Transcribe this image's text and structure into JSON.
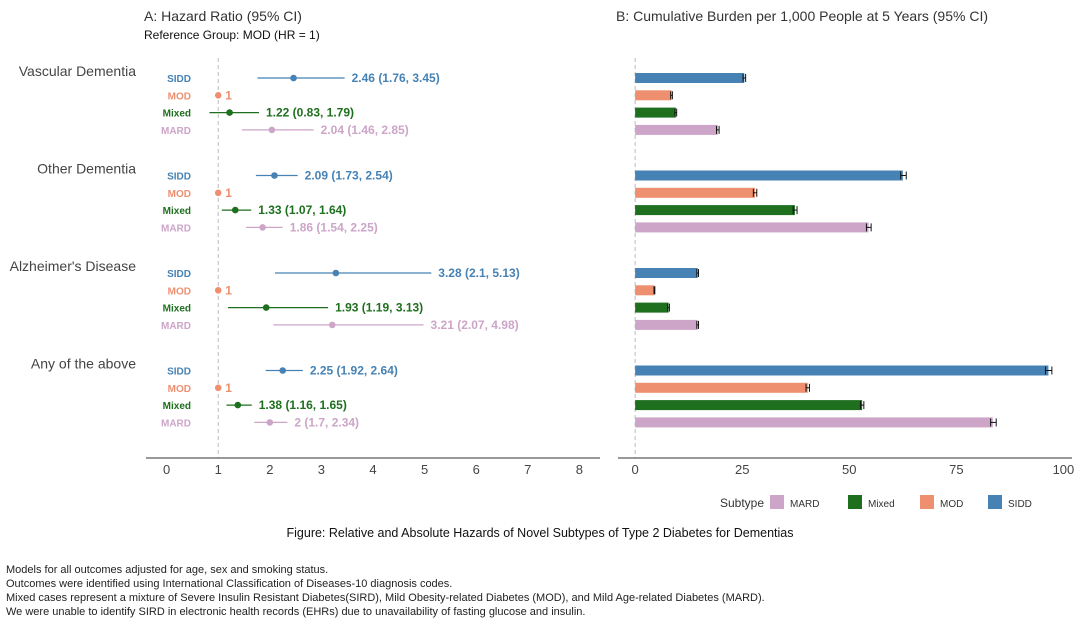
{
  "colors": {
    "SIDD": "#4682B4",
    "MOD": "#EE9070",
    "Mixed": "#1E6F1E",
    "MARD": "#CDA5C8"
  },
  "chart_data": [
    {
      "type": "forest",
      "title": "A: Hazard Ratio (95% CI)",
      "subtitle": "Reference Group: MOD (HR = 1)",
      "xlim": [
        -0.4,
        8.4
      ],
      "xticks": [
        0,
        1,
        2,
        3,
        4,
        5,
        6,
        7,
        8
      ],
      "reference_line": 1,
      "groups": [
        {
          "name": "Vascular Dementia",
          "rows": [
            {
              "subtype": "SIDD",
              "hr": 2.46,
              "lo": 1.76,
              "hi": 3.45,
              "label": "2.46 (1.76, 3.45)"
            },
            {
              "subtype": "MOD",
              "hr": 1,
              "lo": 1,
              "hi": 1,
              "label": "1"
            },
            {
              "subtype": "Mixed",
              "hr": 1.22,
              "lo": 0.83,
              "hi": 1.79,
              "label": "1.22 (0.83, 1.79)"
            },
            {
              "subtype": "MARD",
              "hr": 2.04,
              "lo": 1.46,
              "hi": 2.85,
              "label": "2.04 (1.46, 2.85)"
            }
          ]
        },
        {
          "name": "Other Dementia",
          "rows": [
            {
              "subtype": "SIDD",
              "hr": 2.09,
              "lo": 1.73,
              "hi": 2.54,
              "label": "2.09 (1.73, 2.54)"
            },
            {
              "subtype": "MOD",
              "hr": 1,
              "lo": 1,
              "hi": 1,
              "label": "1"
            },
            {
              "subtype": "Mixed",
              "hr": 1.33,
              "lo": 1.07,
              "hi": 1.64,
              "label": "1.33 (1.07, 1.64)"
            },
            {
              "subtype": "MARD",
              "hr": 1.86,
              "lo": 1.54,
              "hi": 2.25,
              "label": "1.86 (1.54, 2.25)"
            }
          ]
        },
        {
          "name": "Alzheimer's Disease",
          "rows": [
            {
              "subtype": "SIDD",
              "hr": 3.28,
              "lo": 2.1,
              "hi": 5.13,
              "label": "3.28 (2.1, 5.13)"
            },
            {
              "subtype": "MOD",
              "hr": 1,
              "lo": 1,
              "hi": 1,
              "label": "1"
            },
            {
              "subtype": "Mixed",
              "hr": 1.93,
              "lo": 1.19,
              "hi": 3.13,
              "label": "1.93 (1.19, 3.13)"
            },
            {
              "subtype": "MARD",
              "hr": 3.21,
              "lo": 2.07,
              "hi": 4.98,
              "label": "3.21 (2.07, 4.98)"
            }
          ]
        },
        {
          "name": "Any of the above",
          "rows": [
            {
              "subtype": "SIDD",
              "hr": 2.25,
              "lo": 1.92,
              "hi": 2.64,
              "label": "2.25 (1.92, 2.64)"
            },
            {
              "subtype": "MOD",
              "hr": 1,
              "lo": 1,
              "hi": 1,
              "label": "1"
            },
            {
              "subtype": "Mixed",
              "hr": 1.38,
              "lo": 1.16,
              "hi": 1.65,
              "label": "1.38 (1.16, 1.65)"
            },
            {
              "subtype": "MARD",
              "hr": 2,
              "lo": 1.7,
              "hi": 2.34,
              "label": "2 (1.7, 2.34)"
            }
          ]
        }
      ]
    },
    {
      "type": "bar",
      "orientation": "horizontal",
      "title": "B: Cumulative Burden per 1,000 People at 5 Years (95% CI)",
      "xlim": [
        -4,
        102
      ],
      "xticks": [
        0,
        25,
        50,
        75,
        100
      ],
      "groups": [
        {
          "name": "Vascular Dementia",
          "bars": [
            {
              "subtype": "SIDD",
              "value": 25.5,
              "lo": 25.2,
              "hi": 25.8
            },
            {
              "subtype": "MOD",
              "value": 8.5,
              "lo": 8.3,
              "hi": 8.7
            },
            {
              "subtype": "Mixed",
              "value": 9.5,
              "lo": 9.3,
              "hi": 9.7
            },
            {
              "subtype": "MARD",
              "value": 19.3,
              "lo": 19.0,
              "hi": 19.6
            }
          ]
        },
        {
          "name": "Other Dementia",
          "bars": [
            {
              "subtype": "SIDD",
              "value": 62.5,
              "lo": 62.0,
              "hi": 63.3
            },
            {
              "subtype": "MOD",
              "value": 28.0,
              "lo": 27.6,
              "hi": 28.4
            },
            {
              "subtype": "Mixed",
              "value": 37.3,
              "lo": 36.9,
              "hi": 37.8
            },
            {
              "subtype": "MARD",
              "value": 54.5,
              "lo": 54.0,
              "hi": 55.1
            }
          ]
        },
        {
          "name": "Alzheimer's Disease",
          "bars": [
            {
              "subtype": "SIDD",
              "value": 14.6,
              "lo": 14.4,
              "hi": 14.8
            },
            {
              "subtype": "MOD",
              "value": 4.5,
              "lo": 4.4,
              "hi": 4.6
            },
            {
              "subtype": "Mixed",
              "value": 7.8,
              "lo": 7.6,
              "hi": 8.0
            },
            {
              "subtype": "MARD",
              "value": 14.6,
              "lo": 14.4,
              "hi": 14.8
            }
          ]
        },
        {
          "name": "Any of the above",
          "bars": [
            {
              "subtype": "SIDD",
              "value": 96.5,
              "lo": 95.8,
              "hi": 97.3
            },
            {
              "subtype": "MOD",
              "value": 40.3,
              "lo": 39.9,
              "hi": 40.7
            },
            {
              "subtype": "Mixed",
              "value": 53.0,
              "lo": 52.6,
              "hi": 53.4
            },
            {
              "subtype": "MARD",
              "value": 83.5,
              "lo": 83.0,
              "hi": 84.3
            }
          ]
        }
      ]
    }
  ],
  "legend": {
    "title": "Subtype",
    "items": [
      "MARD",
      "Mixed",
      "MOD",
      "SIDD"
    ]
  },
  "caption": "Figure: Relative and Absolute Hazards of Novel Subtypes of Type 2 Diabetes for Dementias",
  "notes": [
    "Models for all outcomes adjusted for age, sex and smoking status.",
    "Outcomes were identified using International Classification of Diseases-10 diagnosis codes.",
    "Mixed cases represent a mixture of Severe Insulin Resistant Diabetes(SIRD), Mild Obesity-related Diabetes (MOD), and Mild Age-related Diabetes (MARD).",
    "We were unable to identify SIRD in electronic health records (EHRs) due to unavailability of fasting glucose and insulin."
  ]
}
